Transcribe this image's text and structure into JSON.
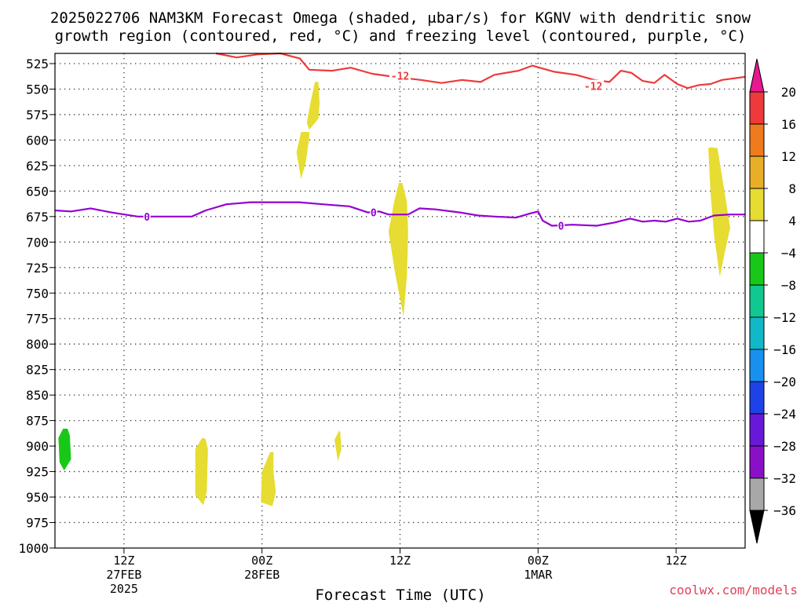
{
  "title_line1": "2025022706 NAM3KM Forecast Omega (shaded, μbar/s) for KGNV with dendritic snow",
  "title_line2": "growth region (contoured, red, °C) and freezing level (contoured, purple, °C)",
  "xlabel": "Forecast Time (UTC)",
  "credit": "coolwx.com/models",
  "colors": {
    "red_contour": "#ee3a3a",
    "purple_contour": "#9400d3",
    "ground": "#a0522d",
    "yellow_shade": "#e6dc32",
    "green_shade": "#18c818",
    "credit": "#e0405a"
  },
  "chart_data": {
    "type": "cross-section",
    "x_unit": "forecast hour",
    "xlim": [
      0,
      60
    ],
    "ylim": [
      1000,
      515
    ],
    "y_ticks": [
      525,
      550,
      575,
      600,
      625,
      650,
      675,
      700,
      725,
      750,
      775,
      800,
      825,
      850,
      875,
      900,
      925,
      950,
      975,
      1000
    ],
    "x_ticks": [
      {
        "hour": 6,
        "lines": [
          "12Z",
          "27FEB",
          "2025"
        ]
      },
      {
        "hour": 18,
        "lines": [
          "00Z",
          "28FEB"
        ]
      },
      {
        "hour": 30,
        "lines": [
          "12Z"
        ]
      },
      {
        "hour": 42,
        "lines": [
          "00Z",
          "1MAR"
        ]
      },
      {
        "hour": 54,
        "lines": [
          "12Z"
        ]
      }
    ],
    "grid": true,
    "red_contour": {
      "value": -12,
      "label": "-12",
      "points": [
        [
          14.0,
          515
        ],
        [
          15.8,
          519
        ],
        [
          17.6,
          516
        ],
        [
          19.6,
          515
        ],
        [
          21.3,
          520
        ],
        [
          22.1,
          531
        ],
        [
          24.1,
          532
        ],
        [
          25.7,
          529
        ],
        [
          27.6,
          535
        ],
        [
          29.5,
          538
        ],
        [
          31.8,
          541
        ],
        [
          33.6,
          544
        ],
        [
          35.4,
          541
        ],
        [
          37.0,
          543
        ],
        [
          38.2,
          536
        ],
        [
          40.3,
          532
        ],
        [
          41.5,
          527
        ],
        [
          43.4,
          533
        ],
        [
          45.3,
          536
        ],
        [
          46.9,
          541
        ],
        [
          48.2,
          543
        ],
        [
          49.2,
          532
        ],
        [
          50.1,
          534
        ],
        [
          51.1,
          542
        ],
        [
          52.1,
          544
        ],
        [
          53.0,
          536
        ],
        [
          54.1,
          545
        ],
        [
          55.0,
          549
        ],
        [
          56.0,
          546
        ],
        [
          57.0,
          545
        ],
        [
          58.0,
          541
        ],
        [
          60.0,
          538
        ]
      ],
      "labels": [
        [
          30.0,
          537
        ],
        [
          46.8,
          547
        ]
      ]
    },
    "purple_contour": {
      "value": 0,
      "label": "0",
      "points": [
        [
          0,
          669
        ],
        [
          1.4,
          670
        ],
        [
          3.1,
          667
        ],
        [
          4.9,
          671
        ],
        [
          7.2,
          675
        ],
        [
          9.9,
          675
        ],
        [
          11.9,
          675
        ],
        [
          13.1,
          669
        ],
        [
          14.9,
          663
        ],
        [
          17.0,
          661
        ],
        [
          19.0,
          661
        ],
        [
          21.2,
          661
        ],
        [
          23.3,
          663
        ],
        [
          25.6,
          665
        ],
        [
          27.2,
          671
        ],
        [
          28.2,
          670
        ],
        [
          29.0,
          673
        ],
        [
          30.7,
          673
        ],
        [
          31.7,
          667
        ],
        [
          33.1,
          668
        ],
        [
          35.2,
          671
        ],
        [
          36.8,
          674
        ],
        [
          38.2,
          675
        ],
        [
          40.1,
          676
        ],
        [
          41.3,
          672
        ],
        [
          42.0,
          670
        ],
        [
          42.4,
          679
        ],
        [
          43.2,
          684
        ],
        [
          45.0,
          683
        ],
        [
          47.1,
          684
        ],
        [
          48.6,
          681
        ],
        [
          50.0,
          677
        ],
        [
          51.1,
          680
        ],
        [
          52.1,
          679
        ],
        [
          53.1,
          680
        ],
        [
          54.1,
          677
        ],
        [
          55.1,
          680
        ],
        [
          56.1,
          679
        ],
        [
          57.3,
          674
        ],
        [
          58.7,
          673
        ],
        [
          60.0,
          673
        ]
      ],
      "labels": [
        [
          8.0,
          675
        ],
        [
          27.7,
          671
        ],
        [
          44.0,
          684
        ]
      ]
    },
    "omega_shading": [
      {
        "level": "4",
        "color": "#e6dc32",
        "points": [
          [
            22.6,
            543
          ],
          [
            22.2,
            564
          ],
          [
            21.9,
            583
          ],
          [
            22.1,
            590
          ],
          [
            22.9,
            579
          ],
          [
            23.0,
            564
          ],
          [
            22.9,
            543
          ]
        ]
      },
      {
        "level": "4",
        "color": "#e6dc32",
        "points": [
          [
            21.4,
            592
          ],
          [
            21.0,
            612
          ],
          [
            21.4,
            638
          ],
          [
            21.8,
            622
          ],
          [
            22.1,
            598
          ],
          [
            22.1,
            592
          ]
        ]
      },
      {
        "level": "4",
        "color": "#e6dc32",
        "points": [
          [
            29.9,
            642
          ],
          [
            29.5,
            660
          ],
          [
            29.0,
            690
          ],
          [
            29.6,
            732
          ],
          [
            30.3,
            773
          ],
          [
            30.6,
            733
          ],
          [
            30.7,
            691
          ],
          [
            30.6,
            660
          ],
          [
            30.2,
            642
          ]
        ]
      },
      {
        "level": "4",
        "color": "#e6dc32",
        "points": [
          [
            57.0,
            607
          ],
          [
            57.6,
            608
          ],
          [
            58.2,
            650
          ],
          [
            58.7,
            686
          ],
          [
            58.2,
            712
          ],
          [
            57.8,
            734
          ],
          [
            57.3,
            693
          ],
          [
            57.0,
            652
          ],
          [
            56.8,
            608
          ]
        ]
      },
      {
        "level": "4",
        "color": "#e6dc32",
        "points": [
          [
            12.8,
            892
          ],
          [
            12.2,
            903
          ],
          [
            12.2,
            948
          ],
          [
            12.9,
            958
          ],
          [
            13.2,
            945
          ],
          [
            13.3,
            903
          ],
          [
            13.1,
            893
          ]
        ]
      },
      {
        "level": "4",
        "color": "#e6dc32",
        "points": [
          [
            18.7,
            906
          ],
          [
            18.0,
            925
          ],
          [
            17.9,
            955
          ],
          [
            18.9,
            959
          ],
          [
            19.2,
            945
          ],
          [
            19.0,
            925
          ],
          [
            19.0,
            906
          ]
        ]
      },
      {
        "level": "4",
        "color": "#e6dc32",
        "points": [
          [
            24.7,
            885
          ],
          [
            24.3,
            894
          ],
          [
            24.6,
            915
          ],
          [
            24.9,
            903
          ],
          [
            24.8,
            886
          ]
        ]
      },
      {
        "level": "-4",
        "color": "#18c818",
        "points": [
          [
            0.7,
            883
          ],
          [
            0.3,
            892
          ],
          [
            0.4,
            916
          ],
          [
            0.8,
            924
          ],
          [
            1.4,
            913
          ],
          [
            1.3,
            890
          ],
          [
            1.1,
            883
          ]
        ]
      }
    ],
    "colorbar": {
      "levels": [
        20,
        16,
        12,
        8,
        4,
        -4,
        -8,
        -12,
        -16,
        -20,
        -24,
        -28,
        -32,
        -36
      ],
      "colors": [
        "#ee3a3a",
        "#f07a1e",
        "#e8ae28",
        "#e6dc32",
        "#ffffff",
        "#18c818",
        "#10c890",
        "#10b8c8",
        "#1890f0",
        "#1c42e8",
        "#6818d8",
        "#8a10c8",
        "#a8a8a8"
      ],
      "top_arrow_color": "#e81890",
      "bottom_arrow_color": "#000000"
    }
  }
}
